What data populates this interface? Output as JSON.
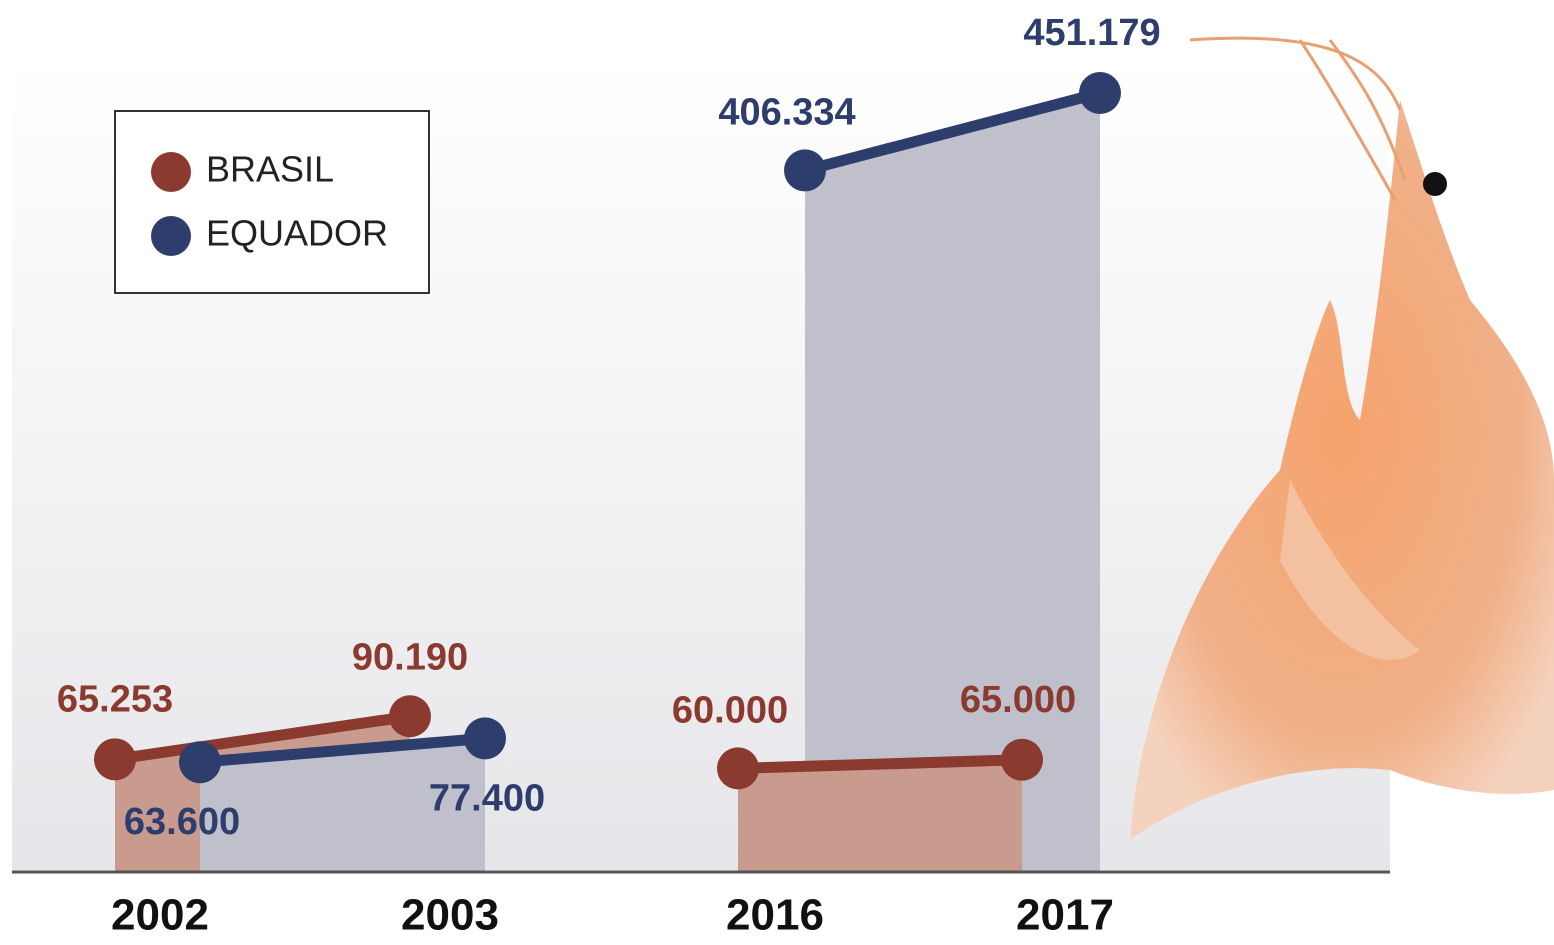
{
  "chart_data": {
    "type": "line",
    "categories": [
      "2002",
      "2003",
      "2016",
      "2017"
    ],
    "series": [
      {
        "name": "BRASIL",
        "color": "#8a3a2e",
        "values": [
          65253,
          90190,
          60000,
          65000
        ],
        "value_labels": [
          "65.253",
          "90.190",
          "60.000",
          "65.000"
        ]
      },
      {
        "name": "EQUADOR",
        "color": "#2d3d6c",
        "values": [
          63600,
          77400,
          406334,
          451179
        ],
        "value_labels": [
          "63.600",
          "77.400",
          "406.334",
          "451.179"
        ]
      }
    ]
  }
}
